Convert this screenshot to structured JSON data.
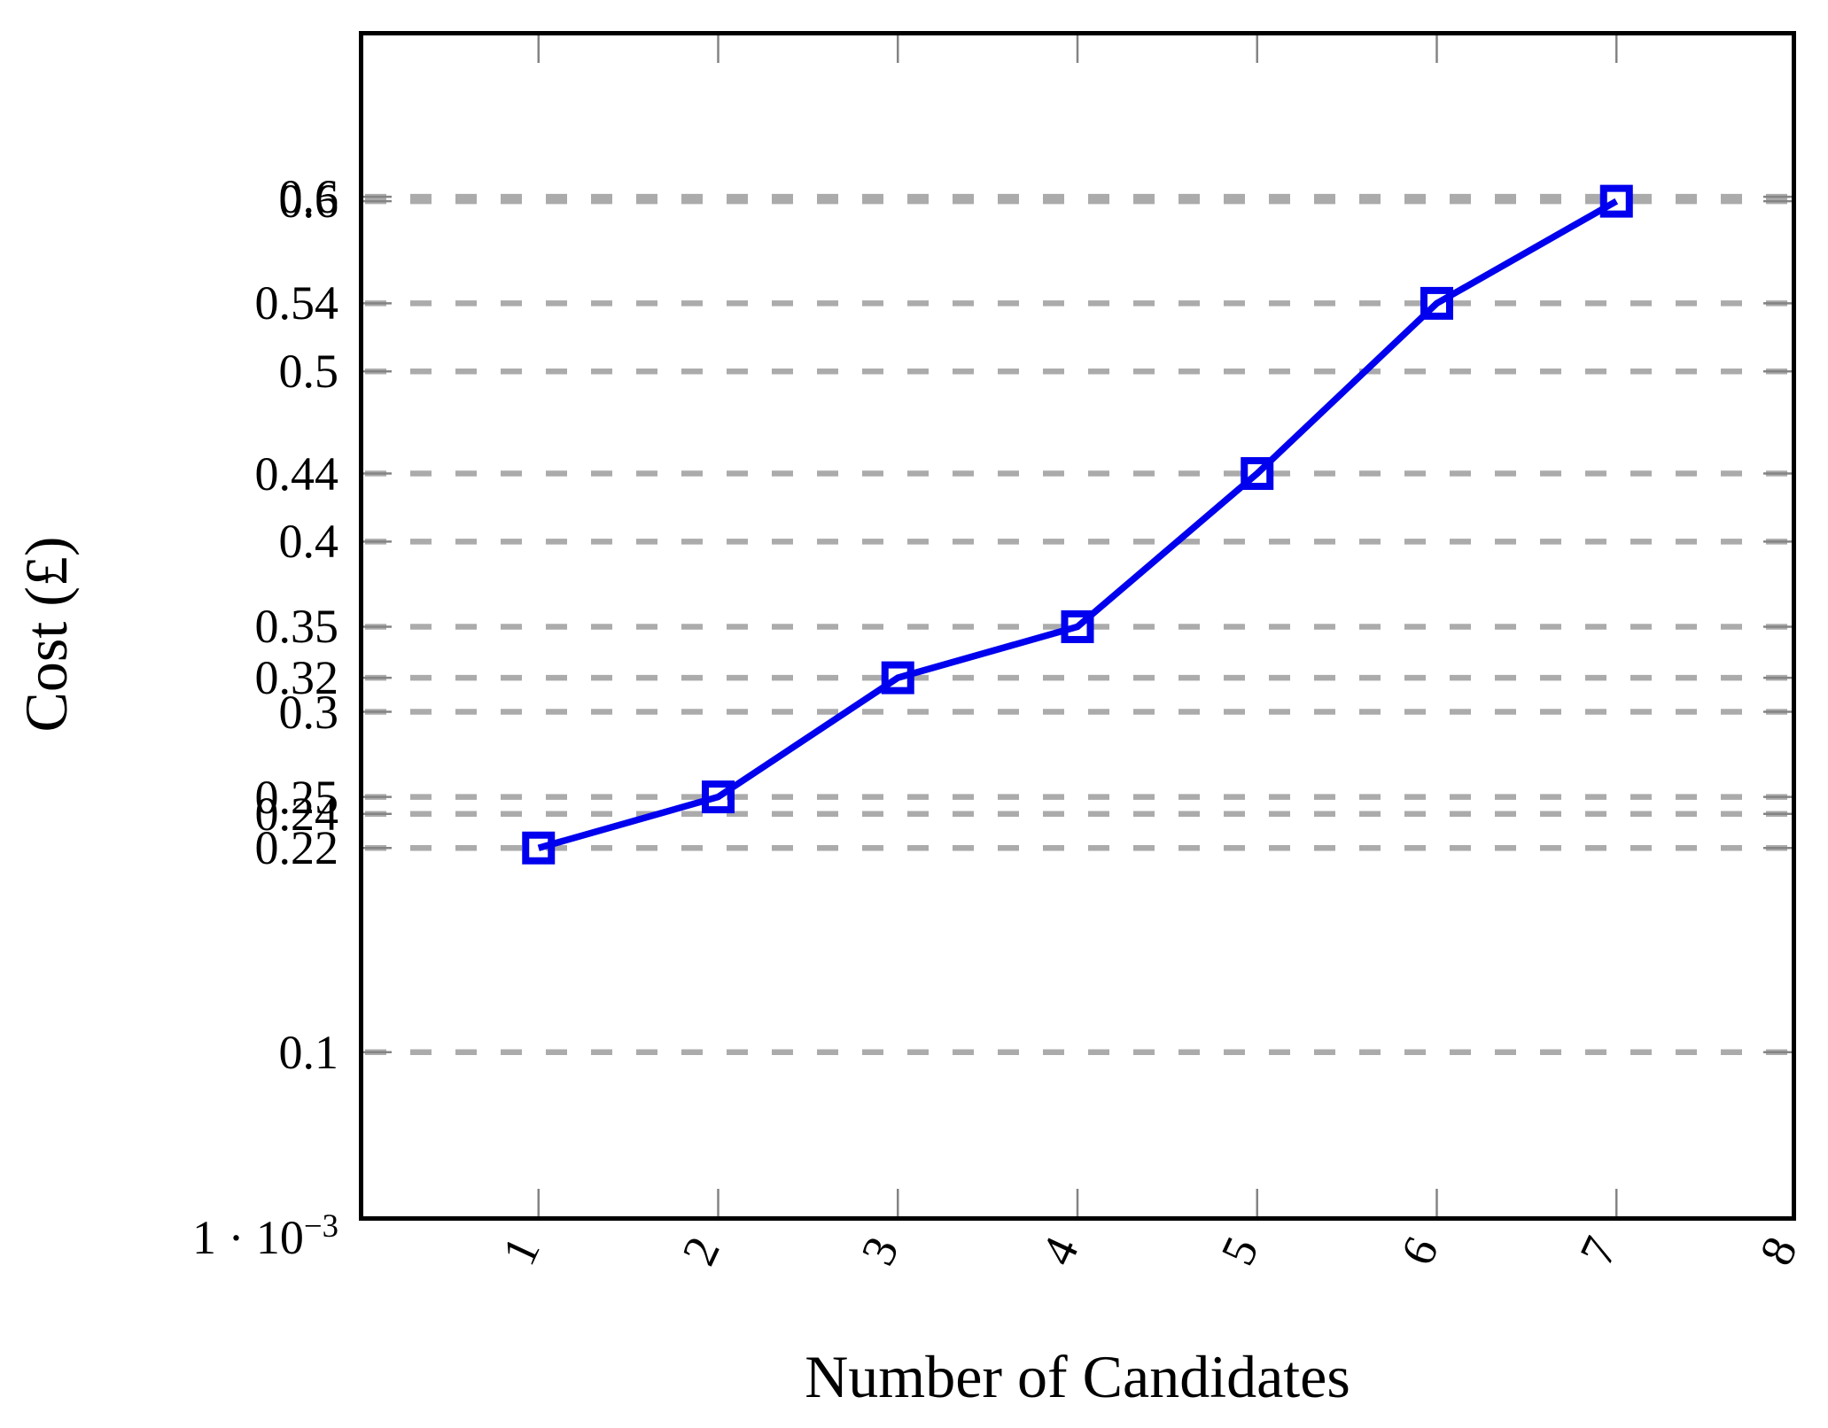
{
  "chart_data": {
    "type": "line",
    "title": "",
    "xlabel": "Number of Candidates",
    "ylabel": "Cost (£)",
    "x": [
      1,
      2,
      3,
      4,
      5,
      6,
      7
    ],
    "y": [
      0.22,
      0.25,
      0.32,
      0.35,
      0.44,
      0.54,
      0.6
    ],
    "series": [
      {
        "name": "",
        "x": [
          1,
          2,
          3,
          4,
          5,
          6,
          7
        ],
        "y": [
          0.22,
          0.25,
          0.32,
          0.35,
          0.44,
          0.54,
          0.6
        ]
      }
    ],
    "xlim": [
      0,
      8
    ],
    "ylim": [
      0.001,
      0.7
    ],
    "x_ticks": {
      "values": [
        1,
        2,
        3,
        4,
        5,
        6,
        7,
        8
      ],
      "rotation_deg": -65
    },
    "y_ticks": [
      {
        "value": 0.6026,
        "label": "0.6"
      },
      {
        "value": 0.6,
        "label": "0.6"
      },
      {
        "value": 0.54,
        "label": "0.54"
      },
      {
        "value": 0.5,
        "label": "0.5"
      },
      {
        "value": 0.44,
        "label": "0.44"
      },
      {
        "value": 0.4,
        "label": "0.4"
      },
      {
        "value": 0.35,
        "label": "0.35"
      },
      {
        "value": 0.32,
        "label": "0.32"
      },
      {
        "value": 0.3,
        "label": "0.3"
      },
      {
        "value": 0.25,
        "label": "0.25"
      },
      {
        "value": 0.24,
        "label": "0.24"
      },
      {
        "value": 0.22,
        "label": "0.22"
      },
      {
        "value": 0.1,
        "label": "0.1"
      },
      {
        "value": 0.001,
        "label": "1 · 10⁻³",
        "label_base": "1 · 10",
        "label_exp": "−3",
        "no_grid": true,
        "no_tick": true
      }
    ],
    "grid": {
      "axis": "y",
      "style": "dashed",
      "color": "#ababab"
    },
    "legend_position": "none",
    "line_color": "#0000ee",
    "marker": "hollow-square",
    "marker_color": "#0000ee",
    "axis_color": "#000000",
    "tick_color": "#848484",
    "background_color": "#ffffff"
  },
  "layout_note": "single line series, no legend, ticks mirrored on all four plot-box sides"
}
